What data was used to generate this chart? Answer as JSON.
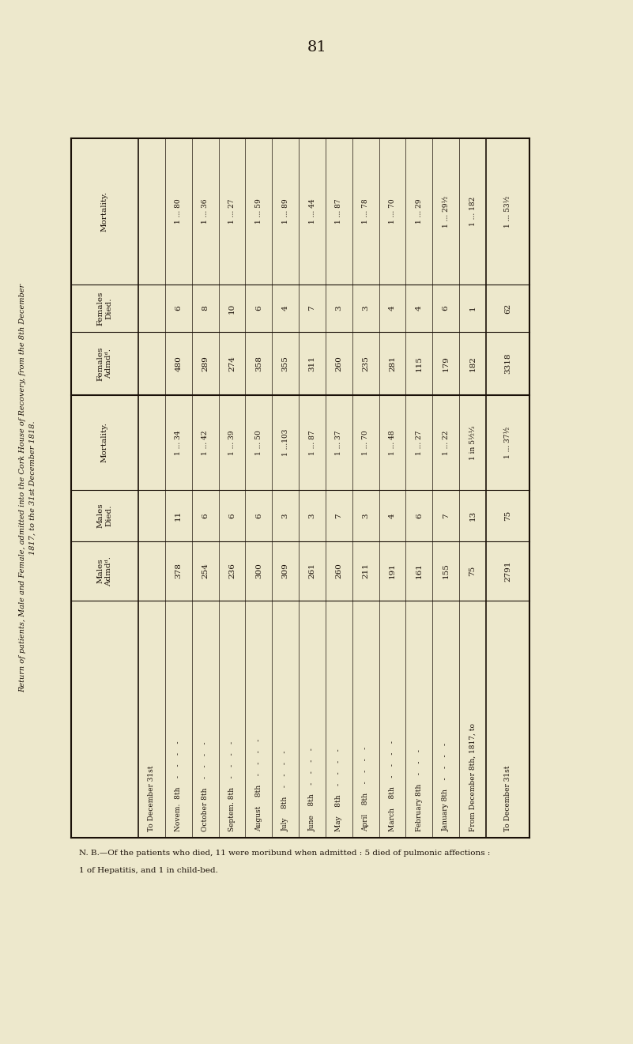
{
  "page_number": "81",
  "main_title": "Return of patients, Male and Female, admitted into the Cork House of Recovery, from the 8th December\n1817, to the 31st December 1818.",
  "background_color": "#ede8cc",
  "paper_color": "#e8e3c4",
  "text_color": "#1a1008",
  "col_headers": [
    "Males\nAdmdᵈ.",
    "Males\nDied.",
    "Mortality.",
    "Females\nAdmdᵈ.",
    "Females\nDied.",
    "Mortality."
  ],
  "row_labels": [
    "From December 8th, 1817, to",
    "January 8th    -    -    -    -",
    "February 8th    -    -    -",
    "March    8th    -    -    -    -",
    "April    8th    -    -    -    -",
    "May    8th    -    -    -    -",
    "June    8th    -    -    -    -",
    "July    8th    -    -    -    -",
    "August    8th    -    -    -    -",
    "Septem. 8th    -    -    -    -",
    "October 8th    -    -    -    -",
    "Novem.  8th    -    -    -    -",
    "To December 31st"
  ],
  "males_admd": [
    "75",
    "155",
    "161",
    "191",
    "211",
    "260",
    "261",
    "309",
    "300",
    "236",
    "254",
    "378"
  ],
  "males_died": [
    "13",
    "7",
    "6",
    "4",
    "3",
    "7",
    "3",
    "3",
    "6",
    "6",
    "6",
    "11"
  ],
  "males_mortality": [
    "1 in 5½⅓",
    "1 ... 22",
    "1 ... 27",
    "1 ... 48",
    "1 ... 70",
    "1 ... 37",
    "1 ... 87",
    "1 ...103",
    "1 ... 50",
    "1 ... 39",
    "1 ... 42",
    "1 ... 34"
  ],
  "females_admd": [
    "182",
    "179",
    "115",
    "281",
    "235",
    "260",
    "311",
    "355",
    "358",
    "274",
    "289",
    "480"
  ],
  "females_died": [
    "1",
    "6",
    "4",
    "4",
    "3",
    "3",
    "7",
    "4",
    "6",
    "10",
    "8",
    "6"
  ],
  "females_mortality": [
    "1 ... 182",
    "1 ... 29½",
    "1 ... 29",
    "1 ... 70",
    "1 ... 78",
    "1 ... 87",
    "1 ... 44",
    "1 ... 89",
    "1 ... 59",
    "1 ... 27",
    "1 ... 36",
    "1 ... 80"
  ],
  "males_admd_total": "2791",
  "males_died_total": "75",
  "males_mortality_total": "1 ... 37½",
  "females_admd_total": "3318",
  "females_died_total": "62",
  "females_mortality_total": "1 ... 53½",
  "footnote_line1": "N. B.—Of the patients who died, 11 were moribund when admitted : 5 died of pulmonic affections :",
  "footnote_line2": "1 of Hepatitis, and 1 in child-bed."
}
